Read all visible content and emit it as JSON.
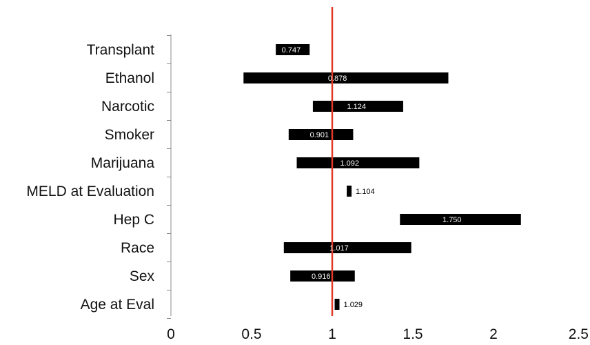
{
  "chart_data": {
    "type": "bar",
    "categories": [
      "Transplant",
      "Ethanol",
      "Narcotic",
      "Smoker",
      "Marijuana",
      "MELD at Evaluation",
      "Hep C",
      "Race",
      "Sex",
      "Age at Eval"
    ],
    "series": [
      {
        "values": [
          0.747,
          0.878,
          1.124,
          0.901,
          1.092,
          1.104,
          1.75,
          1.017,
          0.916,
          1.029
        ],
        "value_labels": [
          "0.747",
          "0.878",
          "1.124",
          "0.901",
          "1.092",
          "1.104",
          "1.750",
          "1.017",
          "0.916",
          "1.029"
        ],
        "low": [
          0.65,
          0.45,
          0.88,
          0.73,
          0.78,
          1.09,
          1.42,
          0.7,
          0.74,
          1.02
        ],
        "high": [
          0.86,
          1.72,
          1.44,
          1.13,
          1.54,
          1.12,
          2.17,
          1.49,
          1.14,
          1.04
        ]
      }
    ],
    "xlim": [
      0,
      2.5
    ],
    "xticks": [
      "0",
      "0.5",
      "1",
      "1.5",
      "2",
      "2.5"
    ],
    "xtick_values": [
      0,
      0.5,
      1,
      1.5,
      2,
      2.5
    ],
    "reference_line": 1,
    "grid": false,
    "colors": {
      "bar": "#000000",
      "reference": "#e03a2a",
      "axis": "#888888",
      "text": "#111111",
      "label_on_bar": "#ffffff",
      "label_off_bar": "#000000"
    }
  }
}
